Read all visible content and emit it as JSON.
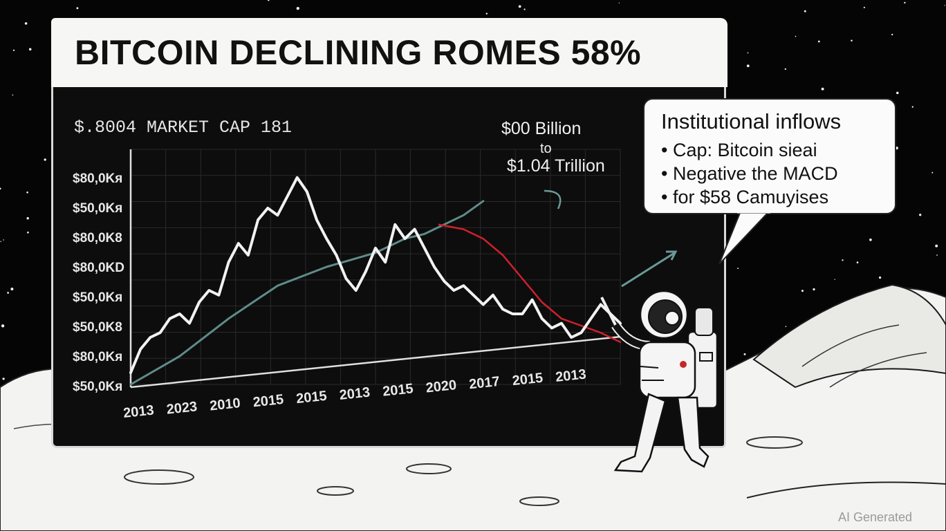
{
  "title": "BITCOIN DECLINING ROMES 58%",
  "callout": {
    "heading": "Institutional inflows",
    "bullets": [
      "Cap: Bitcoin sieai",
      "Negative the MACD",
      "for $58 Camuyises"
    ]
  },
  "watermark": "AI Generated",
  "colors": {
    "background": "#050505",
    "price_line": "#f2f2f2",
    "trend_line": "#5f8c8a",
    "decline_line": "#d0202c",
    "panel": "#0d0d0d"
  },
  "icons": [
    "astronaut-icon",
    "moon-surface",
    "starfield"
  ],
  "chart_data": {
    "type": "line",
    "title": "$.8004 MARKET CAP 181",
    "annotation": {
      "line1": "$00 Billion",
      "line2": "to",
      "line3": "$1.04 Trillion"
    },
    "y_tick_labels": [
      "$80,0Kя",
      "$50,0Kя",
      "$80,0K8",
      "$80,0KD",
      "$50,0Kя",
      "$50,0K8",
      "$80,0Kя",
      "$50,0Kя"
    ],
    "x_tick_labels": [
      "2013",
      "2023",
      "2010",
      "2015",
      "2015",
      "2013",
      "2015",
      "2020",
      "2017",
      "2015",
      "2013"
    ],
    "grid": true,
    "series": [
      {
        "key": "price",
        "style": "white",
        "x": [
          0,
          2,
          4,
          6,
          8,
          10,
          12,
          14,
          16,
          18,
          20,
          22,
          24,
          26,
          28,
          30,
          32,
          34,
          36,
          38,
          40,
          42,
          44,
          46,
          48,
          50,
          52,
          54,
          56,
          58,
          60,
          62,
          64,
          66,
          68,
          70,
          72,
          74,
          76,
          78,
          80,
          82,
          84,
          86,
          88,
          90,
          92,
          94,
          96,
          98,
          100
        ],
        "y": [
          5,
          15,
          20,
          22,
          28,
          30,
          26,
          35,
          40,
          38,
          52,
          60,
          55,
          70,
          75,
          72,
          80,
          88,
          82,
          70,
          62,
          55,
          45,
          40,
          48,
          58,
          52,
          68,
          62,
          66,
          58,
          50,
          44,
          40,
          42,
          38,
          34,
          38,
          32,
          30,
          30,
          36,
          28,
          24,
          26,
          20,
          22,
          28,
          34,
          30,
          26
        ]
      },
      {
        "key": "trend",
        "style": "teal",
        "x": [
          0,
          10,
          20,
          30,
          40,
          50,
          56,
          60,
          64,
          68,
          72
        ],
        "y": [
          0,
          12,
          28,
          42,
          50,
          56,
          62,
          64,
          68,
          72,
          78
        ]
      },
      {
        "key": "decline",
        "style": "red",
        "x": [
          63,
          68,
          72,
          76,
          80,
          84,
          88,
          92,
          96,
          100
        ],
        "y": [
          68,
          66,
          62,
          55,
          45,
          35,
          28,
          25,
          22,
          18
        ]
      }
    ],
    "ylim": [
      0,
      100
    ],
    "xlim": [
      0,
      100
    ]
  }
}
